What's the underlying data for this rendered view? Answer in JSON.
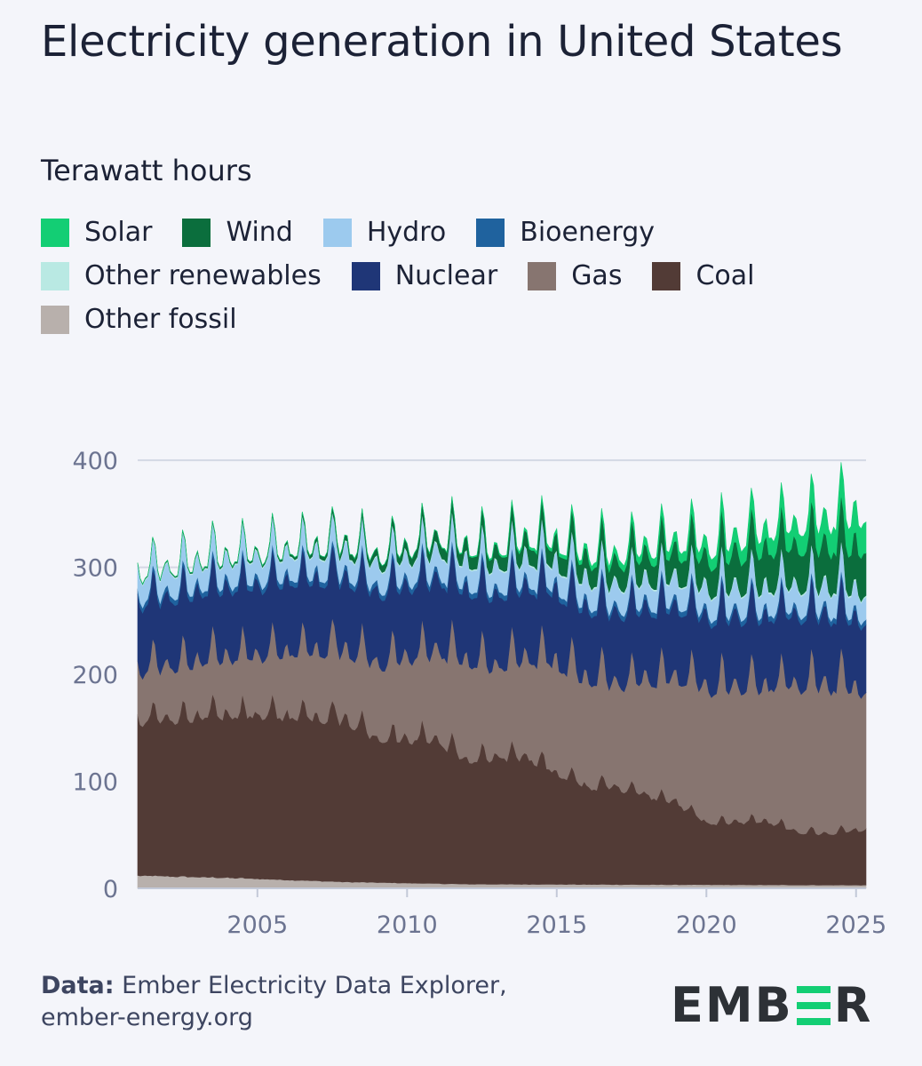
{
  "header": {
    "title": "Electricity generation in United States",
    "subtitle": "Terawatt hours"
  },
  "legend": [
    {
      "label": "Solar",
      "color": "#13ce74"
    },
    {
      "label": "Wind",
      "color": "#0b6e3d"
    },
    {
      "label": "Hydro",
      "color": "#9ccaee"
    },
    {
      "label": "Bioenergy",
      "color": "#1f629e"
    },
    {
      "label": "Other renewables",
      "color": "#b9e9e3"
    },
    {
      "label": "Nuclear",
      "color": "#1f3677"
    },
    {
      "label": "Gas",
      "color": "#877570"
    },
    {
      "label": "Coal",
      "color": "#523b36"
    },
    {
      "label": "Other fossil",
      "color": "#b8b0ac"
    }
  ],
  "footer": {
    "source_label": "Data:",
    "source_text": "Ember Electricity Data Explorer,",
    "source_url": "ember-energy.org",
    "logo_left": "EMB",
    "logo_right": "R"
  },
  "chart_data": {
    "type": "area",
    "stacked": true,
    "x_start": "2001-01",
    "x_end": "2025-05",
    "frequency": "monthly",
    "ylim": [
      0,
      440
    ],
    "yticks": [
      0,
      100,
      200,
      300,
      400
    ],
    "xticks": [
      2005,
      2010,
      2015,
      2020,
      2025
    ],
    "grid": "horizontal",
    "series": [
      {
        "name": "Other fossil",
        "color": "#b8b0ac",
        "keyframes": [
          [
            2001,
            12
          ],
          [
            2004,
            10
          ],
          [
            2008,
            6
          ],
          [
            2012,
            4
          ],
          [
            2025.4,
            3
          ]
        ],
        "seasonal_amp": 0.05,
        "noise": 0.1
      },
      {
        "name": "Coal",
        "color": "#523b36",
        "keyframes": [
          [
            2001,
            150
          ],
          [
            2004,
            158
          ],
          [
            2007,
            160
          ],
          [
            2008,
            158
          ],
          [
            2009,
            140
          ],
          [
            2011,
            140
          ],
          [
            2012,
            120
          ],
          [
            2014,
            125
          ],
          [
            2015,
            108
          ],
          [
            2016,
            95
          ],
          [
            2017,
            95
          ],
          [
            2019,
            80
          ],
          [
            2020,
            60
          ],
          [
            2022,
            62
          ],
          [
            2023,
            52
          ],
          [
            2024,
            50
          ],
          [
            2025.4,
            55
          ]
        ],
        "seasonal_amp": 0.18,
        "noise": 0.04
      },
      {
        "name": "Gas",
        "color": "#877570",
        "keyframes": [
          [
            2001,
            50
          ],
          [
            2005,
            60
          ],
          [
            2008,
            70
          ],
          [
            2010,
            80
          ],
          [
            2012,
            100
          ],
          [
            2013,
            90
          ],
          [
            2015,
            110
          ],
          [
            2017,
            105
          ],
          [
            2019,
            125
          ],
          [
            2020,
            135
          ],
          [
            2022,
            135
          ],
          [
            2023,
            145
          ],
          [
            2024,
            150
          ],
          [
            2025.4,
            140
          ]
        ],
        "seasonal_amp": 0.3,
        "noise": 0.05
      },
      {
        "name": "Nuclear",
        "color": "#1f3677",
        "keyframes": [
          [
            2001,
            63
          ],
          [
            2008,
            67
          ],
          [
            2025.4,
            65
          ]
        ],
        "seasonal_amp": 0.05,
        "noise": 0.02
      },
      {
        "name": "Bioenergy",
        "color": "#1f629e",
        "keyframes": [
          [
            2001,
            5
          ],
          [
            2025.4,
            5
          ]
        ],
        "seasonal_amp": 0.05,
        "noise": 0.02
      },
      {
        "name": "Hydro",
        "color": "#9ccaee",
        "keyframes": [
          [
            2001,
            22
          ],
          [
            2025.4,
            23
          ]
        ],
        "seasonal_amp": 0.25,
        "noise": 0.08
      },
      {
        "name": "Other renewables",
        "color": "#b9e9e3",
        "keyframes": [
          [
            2001,
            1.2
          ],
          [
            2025.4,
            1.5
          ]
        ],
        "seasonal_amp": 0.05,
        "noise": 0.05
      },
      {
        "name": "Wind",
        "color": "#0b6e3d",
        "keyframes": [
          [
            2001,
            0.5
          ],
          [
            2006,
            2
          ],
          [
            2008,
            5
          ],
          [
            2010,
            8
          ],
          [
            2012,
            12
          ],
          [
            2014,
            15
          ],
          [
            2016,
            19
          ],
          [
            2018,
            23
          ],
          [
            2020,
            28
          ],
          [
            2022,
            36
          ],
          [
            2024,
            39
          ],
          [
            2025.4,
            43
          ]
        ],
        "seasonal_amp": 0.2,
        "noise": 0.1
      },
      {
        "name": "Solar",
        "color": "#13ce74",
        "keyframes": [
          [
            2001,
            0
          ],
          [
            2011,
            0.2
          ],
          [
            2013,
            1.5
          ],
          [
            2015,
            3
          ],
          [
            2017,
            6
          ],
          [
            2019,
            9
          ],
          [
            2021,
            14
          ],
          [
            2023,
            20
          ],
          [
            2024,
            24
          ],
          [
            2025.4,
            32
          ]
        ],
        "seasonal_amp": 0.3,
        "noise": 0.05
      }
    ]
  }
}
